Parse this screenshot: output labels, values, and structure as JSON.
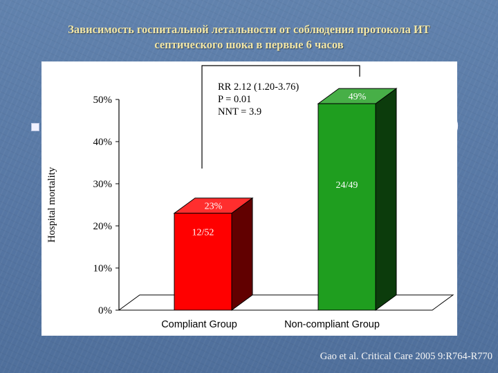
{
  "slide": {
    "title_line1": "Зависимость госпитальной летальности от соблюдения протокола ИТ",
    "title_line2": "септического шока в первые 6 часов",
    "citation": "Gao et al. Critical Care 2005 9:R764-R770",
    "edge_glyph": ")"
  },
  "chart_data": {
    "type": "bar",
    "title": "",
    "xlabel": "",
    "ylabel": "Hospital mortality",
    "categories": [
      "Compliant Group",
      "Non-compliant Group"
    ],
    "values": [
      23,
      49
    ],
    "bar_value_labels": [
      "23%",
      "49%"
    ],
    "bar_count_labels": [
      "12/52",
      "24/49"
    ],
    "bar_colors": [
      "#ff0000",
      "#1f9e1f"
    ],
    "ylim": [
      0,
      50
    ],
    "yticks": [
      0,
      10,
      20,
      30,
      40,
      50
    ],
    "ytick_labels": [
      "0%",
      "10%",
      "20%",
      "30%",
      "40%",
      "50%"
    ],
    "grid": false,
    "annotation_lines": [
      "RR 2.12 (1.20-3.76)",
      "P = 0.01",
      "NNT = 3.9"
    ]
  }
}
